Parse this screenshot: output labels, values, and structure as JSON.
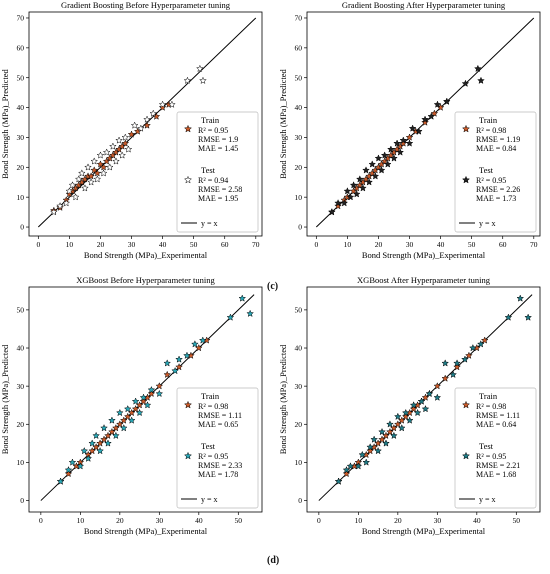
{
  "panel_letters": [
    "(c)",
    "(d)"
  ],
  "chart_data": [
    {
      "type": "scatter",
      "title": "Gradient Boosting Before Hyperparameter tuning",
      "xlabel": "Bond Strength (MPa)_Experimental",
      "ylabel": "Bond Strength (MPa)_Predicted",
      "xlim": [
        -3,
        72
      ],
      "ylim": [
        -3,
        72
      ],
      "xticks": [
        0,
        10,
        20,
        30,
        40,
        50,
        60,
        70
      ],
      "yticks": [
        0,
        10,
        20,
        30,
        40,
        50,
        60,
        70
      ],
      "train_color": "#c85a2a",
      "test_color": "#ffffff",
      "series": [
        {
          "name": "Train",
          "stats": [
            "R² = 0.95",
            "RMSE = 1.9",
            "MAE = 1.45"
          ],
          "points": [
            [
              5,
              5.5
            ],
            [
              7,
              6.5
            ],
            [
              9,
              9
            ],
            [
              10,
              11
            ],
            [
              11,
              12
            ],
            [
              12,
              13
            ],
            [
              13,
              14
            ],
            [
              14,
              15
            ],
            [
              15,
              16
            ],
            [
              16,
              17
            ],
            [
              17,
              17
            ],
            [
              18,
              19
            ],
            [
              19,
              18
            ],
            [
              20,
              21
            ],
            [
              21,
              20
            ],
            [
              22,
              22
            ],
            [
              23,
              23
            ],
            [
              24,
              24
            ],
            [
              25,
              25
            ],
            [
              26,
              26
            ],
            [
              27,
              27
            ],
            [
              28,
              28
            ],
            [
              30,
              31
            ],
            [
              32,
              32
            ],
            [
              35,
              34
            ],
            [
              38,
              37
            ],
            [
              40,
              40
            ],
            [
              42,
              41
            ]
          ]
        },
        {
          "name": "Test",
          "stats": [
            "R² = 0.94",
            "RMSE = 2.58",
            "MAE = 1.95"
          ],
          "points": [
            [
              5,
              5
            ],
            [
              7,
              7
            ],
            [
              9,
              8
            ],
            [
              10,
              12
            ],
            [
              11,
              14
            ],
            [
              12,
              10
            ],
            [
              13,
              16
            ],
            [
              14,
              18
            ],
            [
              15,
              13
            ],
            [
              16,
              20
            ],
            [
              17,
              15
            ],
            [
              18,
              22
            ],
            [
              19,
              16
            ],
            [
              20,
              24
            ],
            [
              21,
              18
            ],
            [
              22,
              25
            ],
            [
              23,
              20
            ],
            [
              24,
              27
            ],
            [
              25,
              22
            ],
            [
              26,
              29
            ],
            [
              27,
              24
            ],
            [
              28,
              30
            ],
            [
              29,
              26
            ],
            [
              31,
              34
            ],
            [
              33,
              33
            ],
            [
              35,
              36
            ],
            [
              37,
              38
            ],
            [
              40,
              41
            ],
            [
              43,
              41
            ],
            [
              48,
              49
            ],
            [
              52,
              53
            ],
            [
              53,
              49
            ]
          ]
        }
      ],
      "reference_line": "y = x"
    },
    {
      "type": "scatter",
      "title": "Gradient Boosting After Hyperparameter tuning",
      "xlabel": "Bond Strength (MPa)_Experimental",
      "ylabel": "Bond Strength (MPa)_Predicted",
      "xlim": [
        -3,
        72
      ],
      "ylim": [
        -3,
        72
      ],
      "xticks": [
        0,
        10,
        20,
        30,
        40,
        50,
        60,
        70
      ],
      "yticks": [
        0,
        10,
        20,
        30,
        40,
        50,
        60,
        70
      ],
      "train_color": "#c85a2a",
      "test_color": "#222222",
      "series": [
        {
          "name": "Train",
          "stats": [
            "R² = 0.98",
            "RMSE = 1.19",
            "MAE = 0.84"
          ],
          "points": [
            [
              5,
              5
            ],
            [
              7,
              7
            ],
            [
              9,
              9
            ],
            [
              10,
              10
            ],
            [
              12,
              12
            ],
            [
              13,
              13
            ],
            [
              14,
              14
            ],
            [
              15,
              15
            ],
            [
              16,
              16
            ],
            [
              17,
              17
            ],
            [
              18,
              18
            ],
            [
              19,
              19
            ],
            [
              20,
              20
            ],
            [
              21,
              21
            ],
            [
              22,
              22
            ],
            [
              23,
              23
            ],
            [
              24,
              24
            ],
            [
              25,
              25
            ],
            [
              26,
              26
            ],
            [
              27,
              27
            ],
            [
              28,
              28
            ],
            [
              30,
              30
            ],
            [
              32,
              32
            ],
            [
              35,
              35
            ],
            [
              38,
              38
            ],
            [
              40,
              40
            ],
            [
              42,
              42
            ]
          ]
        },
        {
          "name": "Test",
          "stats": [
            "R² = 0.95",
            "RMSE = 2.26",
            "MAE = 1.73"
          ],
          "points": [
            [
              5,
              5
            ],
            [
              7,
              8
            ],
            [
              9,
              8
            ],
            [
              10,
              12
            ],
            [
              11,
              10
            ],
            [
              12,
              14
            ],
            [
              13,
              11
            ],
            [
              14,
              16
            ],
            [
              15,
              13
            ],
            [
              16,
              19
            ],
            [
              17,
              15
            ],
            [
              18,
              21
            ],
            [
              19,
              17
            ],
            [
              20,
              23
            ],
            [
              21,
              19
            ],
            [
              22,
              24
            ],
            [
              23,
              21
            ],
            [
              24,
              26
            ],
            [
              25,
              23
            ],
            [
              26,
              28
            ],
            [
              27,
              25
            ],
            [
              28,
              29
            ],
            [
              30,
              28
            ],
            [
              31,
              33
            ],
            [
              33,
              32
            ],
            [
              35,
              36
            ],
            [
              37,
              37
            ],
            [
              39,
              41
            ],
            [
              42,
              42
            ],
            [
              48,
              48
            ],
            [
              52,
              53
            ],
            [
              53,
              49
            ]
          ]
        }
      ],
      "reference_line": "y = x"
    },
    {
      "type": "scatter",
      "title": "XGBoost Before Hyperparameter tuning",
      "xlabel": "Bond Strength (MPa)_Experimental",
      "ylabel": "Bond Strength (MPa)_Predicted",
      "xlim": [
        -3,
        56
      ],
      "ylim": [
        -3,
        56
      ],
      "xticks": [
        0,
        10,
        20,
        30,
        40,
        50
      ],
      "yticks": [
        0,
        10,
        20,
        30,
        40,
        50
      ],
      "train_color": "#c85a2a",
      "test_color": "#2aa6b5",
      "series": [
        {
          "name": "Train",
          "stats": [
            "R² = 0.98",
            "RMSE = 1.11",
            "MAE = 0.65"
          ],
          "points": [
            [
              5,
              5
            ],
            [
              7,
              7
            ],
            [
              9,
              9
            ],
            [
              10,
              10
            ],
            [
              12,
              12
            ],
            [
              13,
              13
            ],
            [
              14,
              14
            ],
            [
              15,
              15
            ],
            [
              16,
              16
            ],
            [
              17,
              17
            ],
            [
              18,
              18
            ],
            [
              19,
              19
            ],
            [
              20,
              20
            ],
            [
              21,
              21
            ],
            [
              22,
              22
            ],
            [
              23,
              23
            ],
            [
              24,
              24
            ],
            [
              25,
              25
            ],
            [
              26,
              26
            ],
            [
              27,
              27
            ],
            [
              28,
              28
            ],
            [
              30,
              30
            ],
            [
              32,
              33
            ],
            [
              35,
              35
            ],
            [
              38,
              38
            ],
            [
              40,
              40
            ],
            [
              42,
              42
            ]
          ]
        },
        {
          "name": "Test",
          "stats": [
            "R² = 0.95",
            "RMSE = 2.33",
            "MAE = 1.78"
          ],
          "points": [
            [
              5,
              5
            ],
            [
              7,
              8
            ],
            [
              8,
              10
            ],
            [
              10,
              9
            ],
            [
              11,
              13
            ],
            [
              12,
              11
            ],
            [
              13,
              15
            ],
            [
              14,
              17
            ],
            [
              15,
              13
            ],
            [
              16,
              19
            ],
            [
              17,
              15
            ],
            [
              18,
              21
            ],
            [
              19,
              17
            ],
            [
              20,
              23
            ],
            [
              21,
              19
            ],
            [
              22,
              24
            ],
            [
              23,
              21
            ],
            [
              24,
              26
            ],
            [
              25,
              23
            ],
            [
              26,
              27
            ],
            [
              27,
              25
            ],
            [
              28,
              29
            ],
            [
              30,
              28
            ],
            [
              32,
              36
            ],
            [
              34,
              34
            ],
            [
              35,
              37
            ],
            [
              37,
              38
            ],
            [
              39,
              41
            ],
            [
              41,
              42
            ],
            [
              48,
              48
            ],
            [
              51,
              53
            ],
            [
              53,
              49
            ]
          ]
        }
      ],
      "reference_line": "y = x"
    },
    {
      "type": "scatter",
      "title": "XGBoost After Hyperparameter tuning",
      "xlabel": "Bond Strength (MPa)_Experimental",
      "ylabel": "Bond Strength (MPa)_Predicted",
      "xlim": [
        -3,
        56
      ],
      "ylim": [
        -3,
        56
      ],
      "xticks": [
        0,
        10,
        20,
        30,
        40,
        50
      ],
      "yticks": [
        0,
        10,
        20,
        30,
        40,
        50
      ],
      "train_color": "#c85a2a",
      "test_color": "#1f7a85",
      "series": [
        {
          "name": "Train",
          "stats": [
            "R² = 0.98",
            "RMSE = 1.11",
            "MAE = 0.64"
          ],
          "points": [
            [
              5,
              5
            ],
            [
              7,
              7
            ],
            [
              9,
              9
            ],
            [
              10,
              10
            ],
            [
              12,
              12
            ],
            [
              13,
              13
            ],
            [
              14,
              14
            ],
            [
              15,
              15
            ],
            [
              16,
              16
            ],
            [
              17,
              17
            ],
            [
              18,
              18
            ],
            [
              19,
              19
            ],
            [
              20,
              20
            ],
            [
              21,
              21
            ],
            [
              22,
              22
            ],
            [
              23,
              23
            ],
            [
              24,
              24
            ],
            [
              25,
              25
            ],
            [
              26,
              26
            ],
            [
              27,
              27
            ],
            [
              28,
              28
            ],
            [
              30,
              30
            ],
            [
              32,
              32
            ],
            [
              35,
              35
            ],
            [
              38,
              38
            ],
            [
              40,
              40
            ],
            [
              42,
              42
            ]
          ]
        },
        {
          "name": "Test",
          "stats": [
            "R² = 0.95",
            "RMSE = 2.21",
            "MAE = 1.68"
          ],
          "points": [
            [
              5,
              5
            ],
            [
              7,
              8
            ],
            [
              8,
              9
            ],
            [
              10,
              9
            ],
            [
              11,
              12
            ],
            [
              12,
              10
            ],
            [
              13,
              14
            ],
            [
              14,
              16
            ],
            [
              15,
              13
            ],
            [
              16,
              18
            ],
            [
              17,
              15
            ],
            [
              18,
              20
            ],
            [
              19,
              17
            ],
            [
              20,
              22
            ],
            [
              21,
              19
            ],
            [
              22,
              23
            ],
            [
              23,
              21
            ],
            [
              24,
              25
            ],
            [
              25,
              23
            ],
            [
              26,
              26
            ],
            [
              27,
              24
            ],
            [
              28,
              28
            ],
            [
              30,
              27
            ],
            [
              32,
              36
            ],
            [
              34,
              33
            ],
            [
              35,
              36
            ],
            [
              37,
              37
            ],
            [
              39,
              40
            ],
            [
              41,
              41
            ],
            [
              48,
              48
            ],
            [
              51,
              53
            ],
            [
              53,
              48
            ]
          ]
        }
      ],
      "reference_line": "y = x"
    }
  ]
}
